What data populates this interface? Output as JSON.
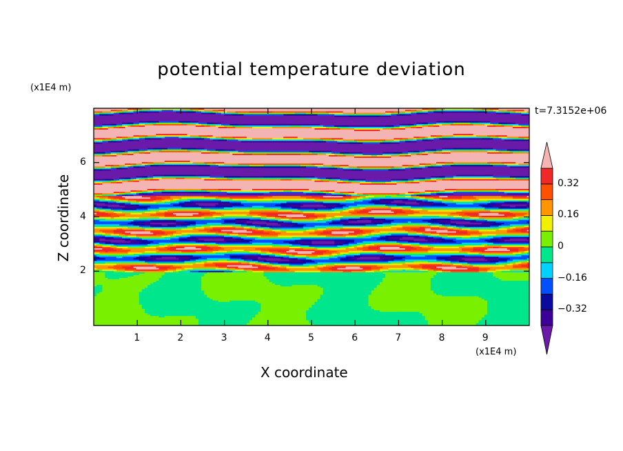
{
  "chart_data": {
    "type": "heatmap",
    "title": "potential temperature deviation",
    "xlabel": "X coordinate",
    "ylabel": "Z coordinate",
    "x_unit": "(x1E4 m)",
    "y_unit": "(x1E4 m)",
    "time_label": "t=7.3152e+06",
    "xlim": [
      0,
      10
    ],
    "ylim": [
      0,
      8
    ],
    "x_ticks": [
      1,
      2,
      3,
      4,
      5,
      6,
      7,
      8,
      9
    ],
    "y_ticks": [
      2,
      4,
      6
    ],
    "colorbar": {
      "levels": [
        -0.4,
        -0.32,
        -0.24,
        -0.16,
        -0.08,
        0,
        0.08,
        0.16,
        0.24,
        0.32,
        0.4
      ],
      "labeled_levels": [
        0.32,
        0.16,
        0,
        -0.16,
        -0.32
      ],
      "colors": [
        "#3c0096",
        "#0a0aa0",
        "#0050ff",
        "#00d2ff",
        "#00e68c",
        "#78f000",
        "#f0f000",
        "#ff9600",
        "#ff5000",
        "#f02828"
      ],
      "over_color": "#f5b4b4",
      "under_color": "#6a1aa8"
    },
    "bands": [
      {
        "z_from": 0.0,
        "z_to": 2.1,
        "level": "near zero (-0.08 to 0.08)"
      },
      {
        "z_from": 2.1,
        "z_to": 4.8,
        "level": "mixed layered (-0.4 to 0.4)"
      },
      {
        "z_from": 4.8,
        "z_to": 8.0,
        "level": "alternating over/under range"
      }
    ]
  }
}
